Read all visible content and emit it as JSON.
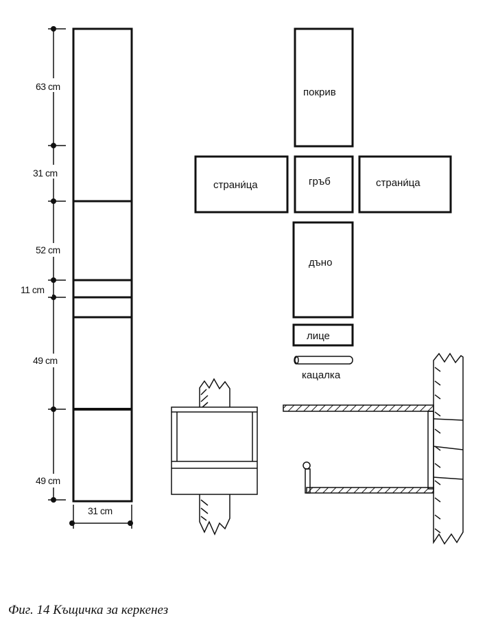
{
  "figure": {
    "caption": "Фиг. 14 Къщичка за керкенез",
    "board_dimensions": [
      "63 cm",
      "31 cm",
      "52 cm",
      "11 cm",
      "49 cm",
      "49 cm"
    ],
    "board_width": "31 cm",
    "parts": {
      "roof": "покрив",
      "side_left": "страни́ца",
      "back": "гръб",
      "side_right": "страни́ца",
      "bottom": "дъно",
      "front": "лице",
      "perch": "кацалка"
    }
  }
}
